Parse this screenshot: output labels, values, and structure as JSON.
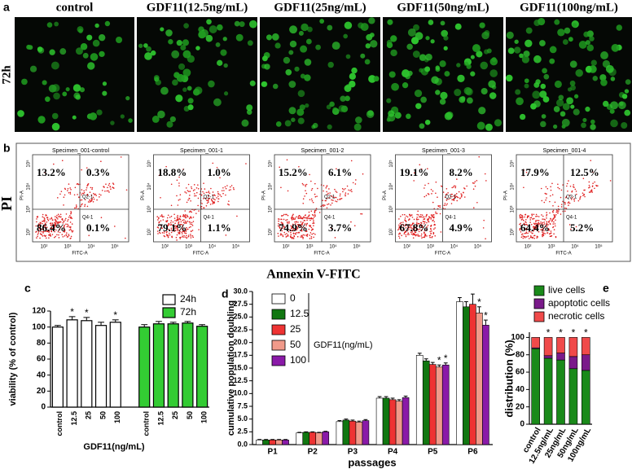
{
  "panel_labels": [
    "a",
    "b",
    "c",
    "d",
    "e"
  ],
  "panel_a": {
    "row_label": "72h",
    "titles": [
      "control",
      "GDF11(12.5ng/mL)",
      "GDF11(25ng/mL)",
      "GDF11(50ng/mL)",
      "GDF11(100ng/mL)"
    ]
  },
  "panel_b": {
    "y_title": "PI",
    "x_title": "Annexin V-FITC",
    "x_axis_label": "FITC-A",
    "y_axis_label": "PI-A",
    "quadrant_labels": [
      "Q2-1",
      "Q4-1"
    ],
    "axis_ticks": [
      "10²",
      "10³",
      "10⁴",
      "10⁵"
    ],
    "plots": [
      {
        "title": "Specimen_001-control",
        "quadrants": [
          "13.2%",
          "0.3%",
          "86.4%",
          "0.1%"
        ]
      },
      {
        "title": "Specimen_001-1",
        "quadrants": [
          "18.8%",
          "1.0%",
          "79.1%",
          "1.1%"
        ]
      },
      {
        "title": "Specimen_001-2",
        "quadrants": [
          "15.2%",
          "6.1%",
          "74.9%",
          "3.7%"
        ]
      },
      {
        "title": "Specimen_001-3",
        "quadrants": [
          "19.1%",
          "8.2%",
          "67.8%",
          "4.9%"
        ]
      },
      {
        "title": "Specimen_001-4",
        "quadrants": [
          "17.9%",
          "12.5%",
          "64.4%",
          "5.2%"
        ]
      }
    ]
  },
  "chart_data": [
    {
      "type": "bar",
      "x_label": "GDF11(ng/mL)",
      "y_label": "viability (% of control)",
      "categories": [
        "control",
        "12.5",
        "25",
        "50",
        "100",
        "control",
        "12.5",
        "25",
        "50",
        "100"
      ],
      "ylim": [
        0,
        120
      ],
      "yticks": [
        0,
        20,
        40,
        60,
        80,
        100,
        120
      ],
      "series": [
        {
          "name": "24h",
          "color": "#ffffff",
          "values": [
            100,
            109,
            108,
            102,
            106,
            null,
            null,
            null,
            null,
            null
          ],
          "errors": [
            2,
            4,
            4,
            4,
            3,
            null,
            null,
            null,
            null,
            null
          ],
          "significance": [
            null,
            "*",
            "*",
            null,
            "*",
            null,
            null,
            null,
            null,
            null
          ]
        },
        {
          "name": "72h",
          "color": "#33cc33",
          "values": [
            null,
            null,
            null,
            null,
            null,
            100,
            104,
            104,
            105,
            101
          ],
          "errors": [
            null,
            null,
            null,
            null,
            null,
            3,
            3,
            2,
            2,
            2
          ],
          "significance": [
            null,
            null,
            null,
            null,
            null,
            null,
            null,
            null,
            null,
            null
          ]
        }
      ]
    },
    {
      "type": "bar",
      "x_label": "passages",
      "y_label": "cumulative population doubling",
      "legend_title": "GDF11(ng/mL)",
      "categories": [
        "P1",
        "P2",
        "P3",
        "P4",
        "P5",
        "P6"
      ],
      "ylim": [
        0,
        30
      ],
      "yticks": [
        {
          "value": 0,
          "label": "0.0"
        },
        2.5,
        {
          "value": 5,
          "label": "5.0"
        },
        7.5,
        {
          "value": 10,
          "label": "10.0"
        },
        12.5,
        {
          "value": 15,
          "label": "15.0"
        },
        17.5,
        {
          "value": 20,
          "label": "20.0"
        },
        22.5,
        {
          "value": 25,
          "label": "25.0"
        },
        27.5,
        {
          "value": 30,
          "label": "30.0"
        }
      ],
      "series": [
        {
          "name": "0",
          "color": "#ffffff",
          "values": [
            0.9,
            2.3,
            4.5,
            9.1,
            17.5,
            28.0
          ],
          "errors": [
            0.1,
            0.1,
            0.2,
            0.3,
            0.4,
            0.8
          ],
          "significance": [
            null,
            null,
            null,
            null,
            null,
            null
          ]
        },
        {
          "name": "12.5",
          "color": "#117711",
          "values": [
            0.9,
            2.4,
            4.8,
            9.1,
            16.4,
            27.0
          ],
          "errors": [
            0.1,
            0.1,
            0.2,
            0.3,
            0.4,
            1.0
          ],
          "significance": [
            null,
            null,
            null,
            null,
            null,
            null
          ]
        },
        {
          "name": "25",
          "color": "#ee3333",
          "values": [
            0.9,
            2.4,
            4.6,
            8.8,
            15.7,
            27.5
          ],
          "errors": [
            0.1,
            0.1,
            0.2,
            0.3,
            0.4,
            2.0
          ],
          "significance": [
            null,
            null,
            null,
            null,
            null,
            null
          ]
        },
        {
          "name": "50",
          "color": "#f09a8a",
          "values": [
            0.9,
            2.3,
            4.4,
            8.5,
            15.2,
            25.8
          ],
          "errors": [
            0.1,
            0.1,
            0.2,
            0.3,
            0.4,
            1.2
          ],
          "significance": [
            null,
            null,
            null,
            null,
            "*",
            "*"
          ]
        },
        {
          "name": "100",
          "color": "#8a1aa8",
          "values": [
            0.9,
            2.5,
            4.7,
            9.2,
            15.6,
            23.4
          ],
          "errors": [
            0.1,
            0.1,
            0.2,
            0.3,
            0.4,
            1.0
          ],
          "significance": [
            null,
            null,
            null,
            null,
            "*",
            "*"
          ]
        }
      ]
    },
    {
      "type": "stacked_bar",
      "y_label": "distribution (%)",
      "categories": [
        "control",
        "12.5ng/mL",
        "25ng/mL",
        "50ng/mL",
        "100ng/mL"
      ],
      "ylim": [
        0,
        106
      ],
      "yticks": [
        0,
        20,
        40,
        60,
        80,
        100
      ],
      "significance": [
        null,
        "*",
        "*",
        "*",
        "*"
      ],
      "series": [
        {
          "name": "live cells",
          "color": "#1a8a1a",
          "values": [
            87,
            76,
            74,
            64,
            62
          ]
        },
        {
          "name": "apoptotic cells",
          "color": "#7a1a8a",
          "values": [
            1,
            3,
            8,
            14,
            18
          ]
        },
        {
          "name": "necrotic cells",
          "color": "#f04a4a",
          "values": [
            12,
            21,
            18,
            22,
            20
          ]
        }
      ]
    }
  ]
}
